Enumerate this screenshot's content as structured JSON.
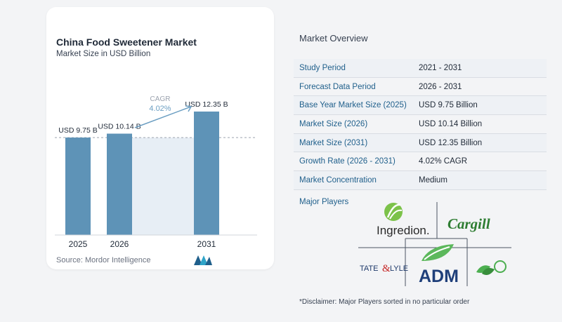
{
  "chart_data": {
    "type": "bar",
    "title": "China Food Sweetener Market",
    "subtitle": "Market Size in USD Billion",
    "categories": [
      "2025",
      "2026",
      "2031"
    ],
    "values": [
      9.75,
      10.14,
      12.35
    ],
    "data_labels": [
      "USD 9.75 B",
      "USD 10.14 B",
      "USD 12.35 B"
    ],
    "cagr_label": "CAGR",
    "cagr_value": "4.02%",
    "ylim": [
      0,
      13
    ],
    "grid": false,
    "colors": {
      "bar": "#5e93b7",
      "band": "#e7eef5",
      "baseline": "#d1d5db",
      "cagr": "#6b9ec2",
      "dashed": "#9ca3af"
    }
  },
  "source": "Source:  Mordor Intelligence",
  "overview": {
    "title": "Market Overview",
    "rows": [
      {
        "label": "Study Period",
        "value": "2021 - 2031"
      },
      {
        "label": "Forecast Data Period",
        "value": "2026 - 2031"
      },
      {
        "label": "Base Year Market Size (2025)",
        "value": "USD 9.75 Billion"
      },
      {
        "label": "Market Size (2026)",
        "value": "USD 10.14 Billion"
      },
      {
        "label": "Market Size (2031)",
        "value": "USD 12.35 Billion"
      },
      {
        "label": "Growth Rate (2026 - 2031)",
        "value": "4.02% CAGR"
      },
      {
        "label": "Market Concentration",
        "value": "Medium"
      }
    ]
  },
  "players": {
    "label": "Major Players",
    "logos": [
      "Ingredion.",
      "Cargill",
      "TATE",
      "LYLE",
      "ADM"
    ]
  },
  "disclaimer": "*Disclaimer: Major Players sorted in no particular order"
}
